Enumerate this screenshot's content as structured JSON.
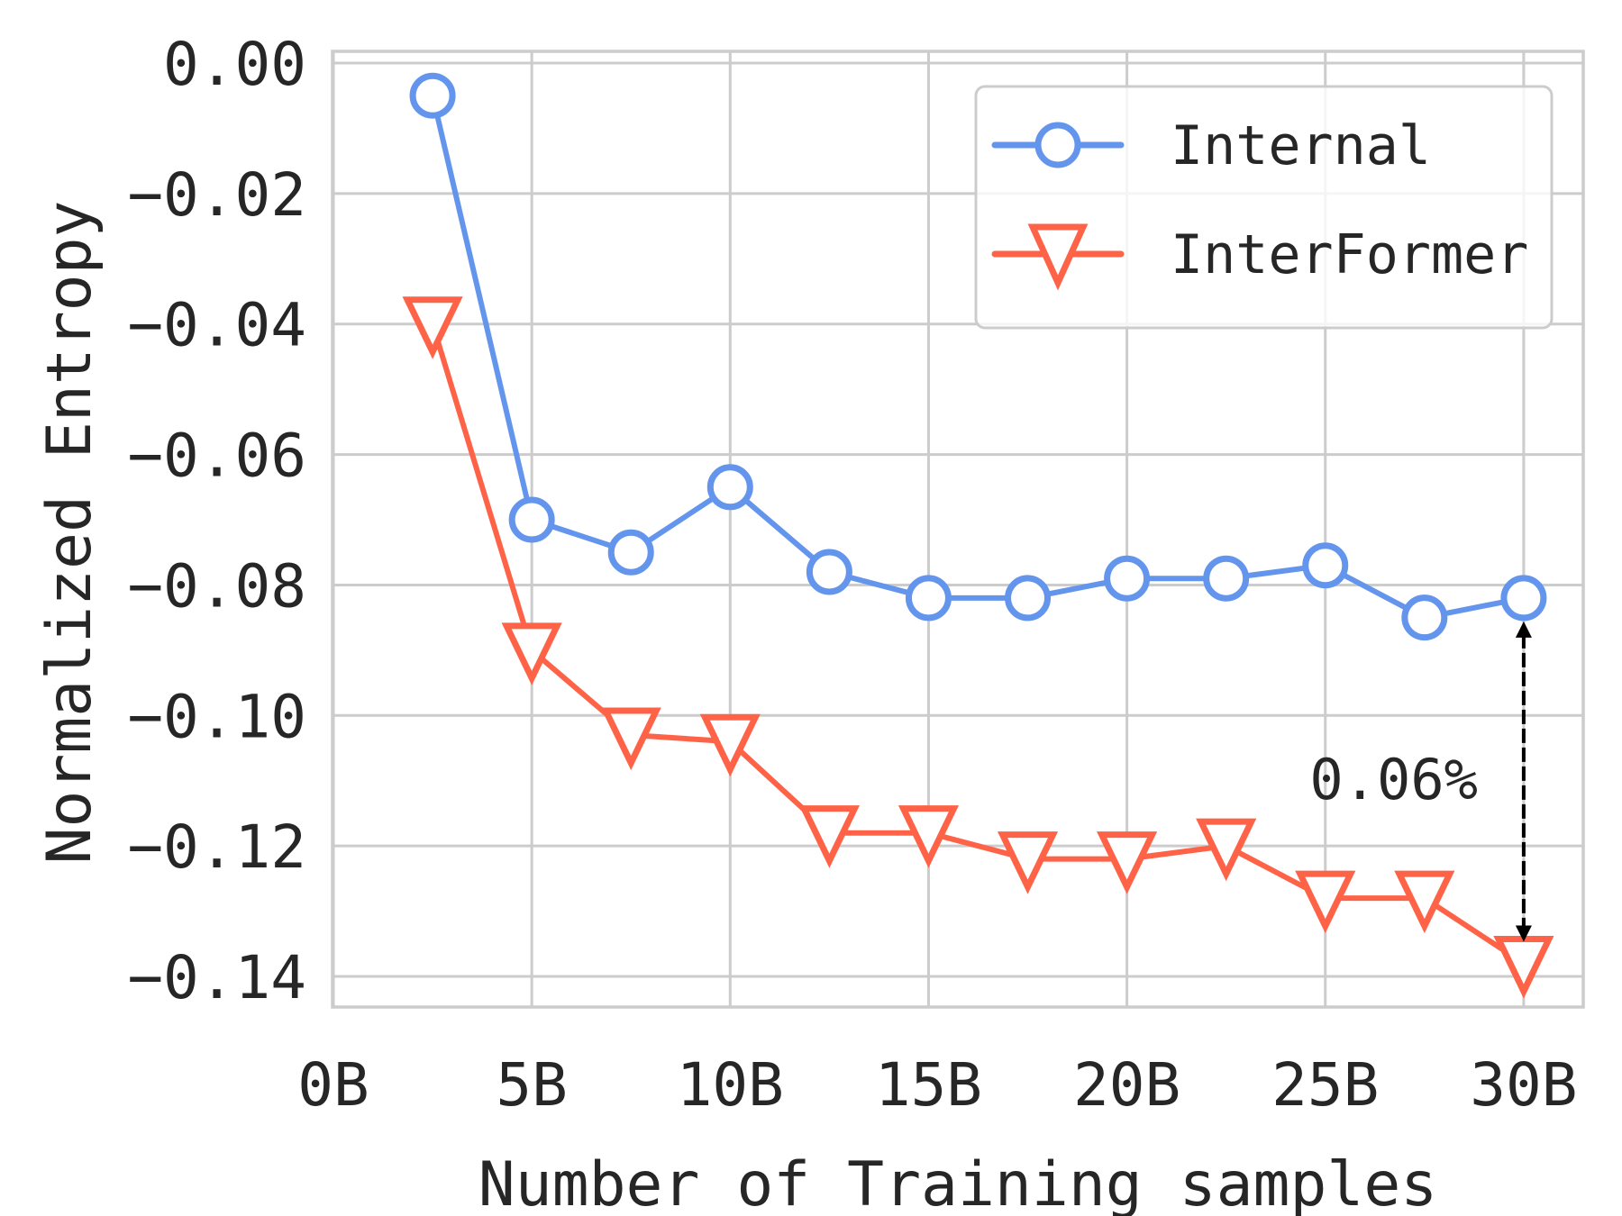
{
  "chart_data": {
    "type": "line",
    "title": "",
    "xlabel": "Number of Training samples",
    "ylabel": "Normalized Entropy",
    "x": [
      2.5,
      5,
      7.5,
      10,
      12.5,
      15,
      17.5,
      20,
      22.5,
      25,
      27.5,
      30
    ],
    "x_unit": "B",
    "xticks": [
      0,
      5,
      10,
      15,
      20,
      25,
      30
    ],
    "xtick_labels": [
      "0B",
      "5B",
      "10B",
      "15B",
      "20B",
      "25B",
      "30B"
    ],
    "yticks": [
      0.0,
      -0.02,
      -0.04,
      -0.06,
      -0.08,
      -0.1,
      -0.12,
      -0.14
    ],
    "ytick_labels": [
      "0.00",
      "−0.02",
      "−0.04",
      "−0.06",
      "−0.08",
      "−0.10",
      "−0.12",
      "−0.14"
    ],
    "xlim": [
      0,
      31.5
    ],
    "ylim": [
      -0.1447,
      0.0018
    ],
    "grid": true,
    "legend_position": "upper right",
    "series": [
      {
        "name": "Internal",
        "color": "#6495ED",
        "marker": "circle",
        "values": [
          -0.005,
          -0.07,
          -0.075,
          -0.065,
          -0.078,
          -0.082,
          -0.082,
          -0.079,
          -0.079,
          -0.077,
          -0.085,
          -0.082
        ]
      },
      {
        "name": "InterFormer",
        "color": "#FF6347",
        "marker": "triangle-down",
        "values": [
          -0.04,
          -0.09,
          -0.103,
          -0.104,
          -0.118,
          -0.118,
          -0.122,
          -0.122,
          -0.12,
          -0.128,
          -0.128,
          -0.138
        ]
      }
    ],
    "annotations": [
      {
        "text": "0.06%",
        "type": "double-arrow-dashed",
        "x": 30,
        "y_from": -0.082,
        "y_to": -0.138
      }
    ]
  },
  "legend": {
    "items": [
      {
        "label": "Internal"
      },
      {
        "label": "InterFormer"
      }
    ]
  },
  "axes": {
    "xlabel": "Number of Training samples",
    "ylabel": "Normalized Entropy"
  },
  "annotation": {
    "text": "0.06%"
  },
  "colors": {
    "text": "#262626",
    "grid": "#cccccc",
    "annotation_arrow": "#000000"
  }
}
